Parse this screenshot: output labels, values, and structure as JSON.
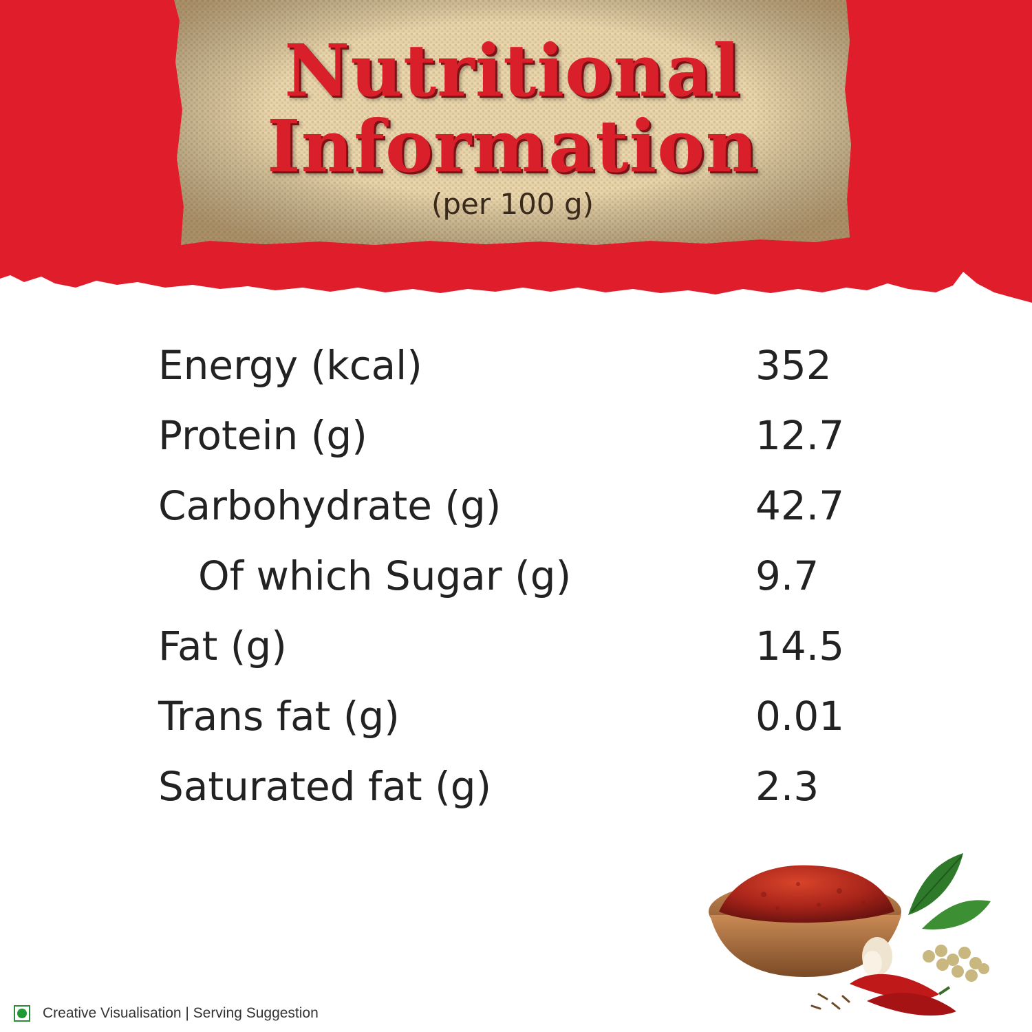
{
  "header": {
    "title_line1": "Nutritional",
    "title_line2": "Information",
    "subtitle": "(per 100 g)"
  },
  "nutrition": {
    "rows": [
      {
        "label": "Energy (kcal)",
        "value": "352"
      },
      {
        "label": "Protein (g)",
        "value": "12.7"
      },
      {
        "label": "Carbohydrate (g)",
        "value": "42.7"
      },
      {
        "label": "Of which Sugar (g)",
        "value": "9.7"
      },
      {
        "label": "Fat (g)",
        "value": "14.5"
      },
      {
        "label": "Trans fat (g)",
        "value": "0.01"
      },
      {
        "label": "Saturated fat (g)",
        "value": "2.3"
      }
    ]
  },
  "footer": {
    "text": "Creative Visualisation | Serving Suggestion"
  },
  "colors": {
    "band_red": "#e01e2b",
    "title_red": "#d9202a",
    "burlap": "#e3cfa6",
    "veg_green": "#1f9a35"
  },
  "icons": {
    "veg": "veg-mark-icon",
    "illustration": "spice-bowl-icon"
  }
}
